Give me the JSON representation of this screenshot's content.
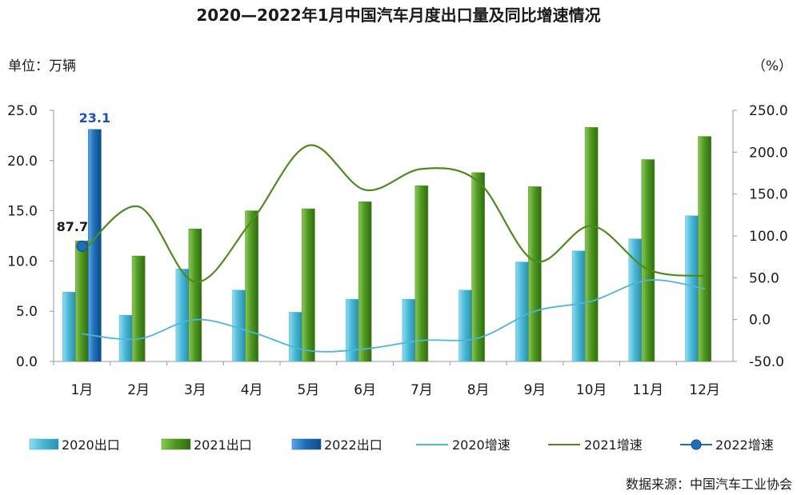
{
  "chart_data": {
    "type": "bar",
    "title": "2020—2022年1月中国汽车月度出口量及同比增速情况",
    "left_unit": "单位：万辆",
    "right_unit": "（%）",
    "source": "数据来源：中国汽车工业协会",
    "categories": [
      "1月",
      "2月",
      "3月",
      "4月",
      "5月",
      "6月",
      "7月",
      "8月",
      "9月",
      "10月",
      "11月",
      "12月"
    ],
    "left_axis": {
      "min": 0,
      "max": 25,
      "step": 5,
      "ticks": [
        "0.0",
        "5.0",
        "10.0",
        "15.0",
        "20.0",
        "25.0"
      ]
    },
    "right_axis": {
      "min": -50,
      "max": 250,
      "step": 50,
      "ticks": [
        "-50.0",
        "0.0",
        "50.0",
        "100.0",
        "150.0",
        "200.0",
        "250.0"
      ]
    },
    "bar_series": [
      {
        "name": "2020出口",
        "color": "#4bb8d6",
        "values": [
          6.9,
          4.6,
          9.2,
          7.1,
          4.9,
          6.2,
          6.2,
          7.1,
          9.9,
          11.0,
          12.2,
          14.5
        ]
      },
      {
        "name": "2021出口",
        "color": "#4f9a22",
        "values": [
          12.0,
          10.5,
          13.2,
          15.0,
          15.2,
          15.9,
          17.5,
          18.8,
          17.4,
          23.3,
          20.1,
          22.4
        ]
      },
      {
        "name": "2022出口",
        "color": "#1c6fb8",
        "values": [
          23.1,
          null,
          null,
          null,
          null,
          null,
          null,
          null,
          null,
          null,
          null,
          null
        ]
      }
    ],
    "line_series": [
      {
        "name": "2020增速",
        "color": "#4bb8d6",
        "values": [
          -17,
          -23,
          0,
          -15,
          -37,
          -35,
          -25,
          -22,
          10,
          22,
          47,
          37
        ]
      },
      {
        "name": "2021增速",
        "color": "#4f8a1c",
        "values": [
          80,
          135,
          45,
          118,
          208,
          155,
          180,
          165,
          70,
          112,
          60,
          52
        ]
      },
      {
        "name": "2022增速",
        "color": "#1c6fb8",
        "values": [
          87.7,
          null,
          null,
          null,
          null,
          null,
          null,
          null,
          null,
          null,
          null,
          null
        ]
      }
    ],
    "data_labels": {
      "bar_2022": "23.1",
      "line_2022": "87.7"
    },
    "legend_position": "bottom"
  }
}
